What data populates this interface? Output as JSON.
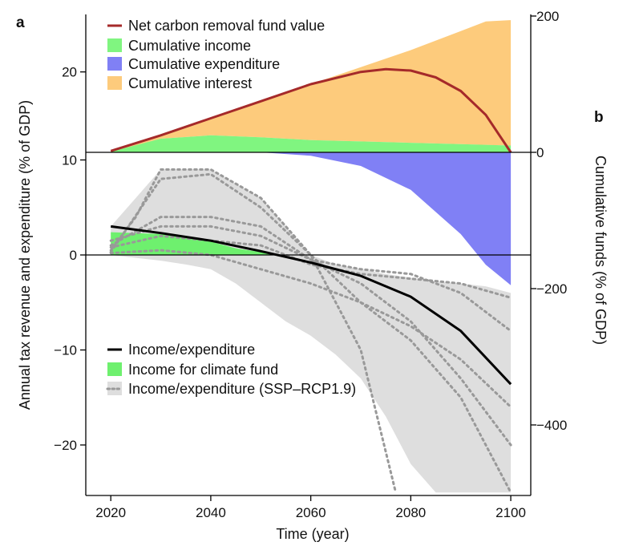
{
  "panel_labels": {
    "a": "a",
    "b": "b"
  },
  "axes": {
    "xlabel": "Time (year)",
    "ylabel_left": "Annual tax revenue and expenditure (% of GDP)",
    "ylabel_right": "Cumulative funds (% of GDP)"
  },
  "colors": {
    "net_value": "#a52a2a",
    "cumulative_income": "#80f580",
    "cumulative_expenditure": "#8080f5",
    "cumulative_interest": "#fdcb7c",
    "income_expenditure": "#000000",
    "income_for_climate_fund": "#6ef06e",
    "ssp_band": "#dedede",
    "ssp_lines": "#999999"
  },
  "legend_top": [
    {
      "label": "Net carbon removal fund value",
      "swatch": "line",
      "color": "#a52a2a"
    },
    {
      "label": "Cumulative income",
      "swatch": "box",
      "color": "#80f580"
    },
    {
      "label": "Cumulative expenditure",
      "swatch": "box",
      "color": "#8080f5"
    },
    {
      "label": "Cumulative interest",
      "swatch": "box",
      "color": "#fdcb7c"
    }
  ],
  "legend_bottom": [
    {
      "label": "Income/expenditure",
      "swatch": "line",
      "color": "#000000"
    },
    {
      "label": "Income for climate fund",
      "swatch": "box",
      "color": "#6ef06e"
    },
    {
      "label": "Income/expenditure (SSP–RCP1.9)",
      "swatch": "dots",
      "color": "#999999"
    }
  ],
  "chart_data": [
    {
      "panel": "a",
      "type": "line",
      "xlabel": "Time (year)",
      "ylabel": "Annual tax revenue and expenditure (% of GDP)",
      "xlim": [
        2015,
        2104
      ],
      "ylim": [
        -25,
        10
      ],
      "x_ticks": [
        2020,
        2040,
        2060,
        2080,
        2100
      ],
      "x_tick_labels": [
        "2020",
        "2040",
        "2060",
        "2080",
        "2100"
      ],
      "y_ticks": [
        -20,
        -10,
        0,
        10
      ],
      "y_tick_labels": [
        "−20",
        "−10",
        "0",
        "10"
      ],
      "grid": false,
      "legend_position": "lower-left",
      "series": [
        {
          "name": "Income/expenditure",
          "style": "solid-line",
          "x": [
            2020,
            2030,
            2040,
            2050,
            2060,
            2070,
            2080,
            2090,
            2100
          ],
          "y": [
            3.0,
            2.3,
            1.5,
            0.4,
            -0.8,
            -2.2,
            -4.4,
            -8.0,
            -13.6
          ]
        },
        {
          "name": "Income for climate fund",
          "style": "band",
          "x": [
            2020,
            2030,
            2040,
            2045,
            2050,
            2053
          ],
          "y_upper": [
            2.4,
            2.2,
            1.4,
            0.7,
            0.3,
            0.0
          ],
          "y_lower": [
            0,
            0,
            0,
            0,
            0,
            0
          ]
        },
        {
          "name": "Income/expenditure (SSP–RCP1.9)",
          "style": "shaded-range",
          "x": [
            2020,
            2025,
            2030,
            2035,
            2040,
            2045,
            2050,
            2055,
            2060,
            2065,
            2070,
            2075,
            2080,
            2085,
            2090,
            2095,
            2100
          ],
          "y_upper": [
            3.0,
            6.0,
            9.0,
            9.0,
            9.0,
            7.5,
            6.0,
            3.0,
            0.0,
            -1.0,
            -1.5,
            -2.0,
            -2.4,
            -2.8,
            -3.0,
            -3.3,
            -4.0
          ],
          "y_lower": [
            0.0,
            -0.3,
            -0.6,
            -1.0,
            -1.5,
            -3.0,
            -5.0,
            -7.0,
            -8.5,
            -10.5,
            -13.0,
            -17.0,
            -22.0,
            -25.0,
            -25.0,
            -25.0,
            -25.0
          ]
        },
        {
          "name": "SSP–RCP1.9 pathway 1",
          "style": "dotted",
          "x": [
            2020,
            2025,
            2030,
            2040,
            2050,
            2060,
            2070,
            2077
          ],
          "y": [
            0.5,
            4.0,
            9.0,
            9.0,
            6.0,
            0.0,
            -10.0,
            -25.0
          ]
        },
        {
          "name": "SSP–RCP1.9 pathway 2",
          "style": "dotted",
          "x": [
            2020,
            2030,
            2040,
            2050,
            2060,
            2070,
            2080,
            2090,
            2100
          ],
          "y": [
            0.3,
            8.0,
            8.5,
            5.0,
            0.0,
            -5.0,
            -9.0,
            -15.0,
            -25.0
          ]
        },
        {
          "name": "SSP–RCP1.9 pathway 3",
          "style": "dotted",
          "x": [
            2020,
            2030,
            2040,
            2050,
            2060,
            2070,
            2080,
            2090,
            2100
          ],
          "y": [
            1.0,
            4.0,
            4.0,
            3.0,
            -0.5,
            -3.0,
            -7.0,
            -13.0,
            -20.0
          ]
        },
        {
          "name": "SSP–RCP1.9 pathway 4",
          "style": "dotted",
          "x": [
            2020,
            2030,
            2040,
            2050,
            2060,
            2070,
            2080,
            2090,
            2100
          ],
          "y": [
            1.5,
            3.0,
            3.0,
            2.0,
            -0.5,
            -1.5,
            -2.0,
            -4.0,
            -8.0
          ]
        },
        {
          "name": "SSP–RCP1.9 pathway 5",
          "style": "dotted",
          "x": [
            2020,
            2030,
            2040,
            2050,
            2060,
            2070,
            2080,
            2090,
            2100
          ],
          "y": [
            0.8,
            2.0,
            1.5,
            1.0,
            -1.0,
            -2.0,
            -2.5,
            -3.0,
            -4.5
          ]
        },
        {
          "name": "SSP–RCP1.9 pathway 6",
          "style": "dotted",
          "x": [
            2020,
            2030,
            2040,
            2050,
            2060,
            2070,
            2080,
            2090,
            2100
          ],
          "y": [
            0.2,
            0.5,
            0.0,
            -1.5,
            -3.0,
            -5.0,
            -7.5,
            -11.0,
            -16.0
          ]
        }
      ]
    },
    {
      "panel": "b",
      "type": "area",
      "xlabel": "Time (year)",
      "ylabel": "Cumulative funds (% of GDP)",
      "xlim": [
        2015,
        2104
      ],
      "y_ticks": [
        -400,
        -200,
        0,
        200
      ],
      "y_tick_labels": [
        "−400",
        "−200",
        "0",
        "200"
      ],
      "grid": false,
      "legend_position": "top-left",
      "series": [
        {
          "name": "Cumulative interest",
          "style": "area",
          "x": [
            2020,
            2030,
            2040,
            2050,
            2060,
            2070,
            2080,
            2090,
            2095,
            2100
          ],
          "y_upper": [
            2,
            25,
            50,
            75,
            100,
            125,
            150,
            178,
            192,
            194
          ],
          "y_lower": [
            0,
            20,
            25,
            22,
            18,
            16,
            14,
            12,
            11,
            10
          ]
        },
        {
          "name": "Cumulative income",
          "style": "area",
          "x": [
            2020,
            2030,
            2040,
            2050,
            2060,
            2070,
            2080,
            2090,
            2100
          ],
          "y_upper": [
            1,
            20,
            25,
            22,
            18,
            16,
            14,
            12,
            10
          ],
          "y_lower": [
            0,
            0,
            0,
            0,
            0,
            0,
            0,
            0,
            0
          ]
        },
        {
          "name": "Cumulative expenditure",
          "style": "area",
          "x": [
            2050,
            2060,
            2070,
            2080,
            2090,
            2095,
            2100
          ],
          "y_upper": [
            0,
            0,
            0,
            0,
            0,
            0,
            0
          ],
          "y_lower": [
            0,
            -5,
            -20,
            -55,
            -120,
            -165,
            -195
          ]
        },
        {
          "name": "Net carbon removal fund value",
          "style": "solid-line",
          "x": [
            2020,
            2030,
            2040,
            2050,
            2060,
            2070,
            2075,
            2080,
            2085,
            2090,
            2095,
            2100
          ],
          "y": [
            2,
            25,
            50,
            75,
            100,
            118,
            122,
            120,
            110,
            90,
            55,
            0
          ]
        }
      ]
    }
  ]
}
